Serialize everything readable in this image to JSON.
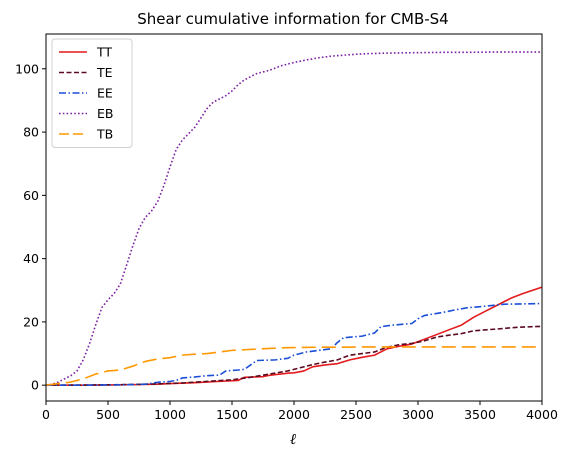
{
  "chart_data": {
    "type": "line",
    "title": "Shear cumulative information for CMB-S4",
    "xlabel": "ℓ",
    "ylabel": "",
    "xlim": [
      0,
      4000
    ],
    "ylim": [
      -5,
      111
    ],
    "xticks": [
      "0",
      "500",
      "1000",
      "1500",
      "2000",
      "2500",
      "3000",
      "3500",
      "4000"
    ],
    "yticks": [
      "0",
      "20",
      "40",
      "60",
      "80",
      "100"
    ],
    "grid": false,
    "legend_position": "top-left",
    "series": [
      {
        "name": "TT",
        "color": "#e41a1c",
        "dash": "solid",
        "x": [
          0,
          300,
          600,
          900,
          1000,
          1200,
          1400,
          1550,
          1600,
          1750,
          1800,
          1950,
          2000,
          2080,
          2150,
          2250,
          2350,
          2450,
          2550,
          2650,
          2750,
          2850,
          2950,
          3050,
          3150,
          3250,
          3350,
          3450,
          3550,
          3650,
          3750,
          3850,
          4000
        ],
        "y": [
          0,
          0,
          0.1,
          0.3,
          0.5,
          0.8,
          1.2,
          1.5,
          2.5,
          2.7,
          3.1,
          3.8,
          3.9,
          4.5,
          5.8,
          6.4,
          6.8,
          8.0,
          8.8,
          9.5,
          11.5,
          12.3,
          13.0,
          14.5,
          16.0,
          17.5,
          19.0,
          21.5,
          23.5,
          25.5,
          27.5,
          29.0,
          31.0
        ]
      },
      {
        "name": "TE",
        "color": "#5b0a20",
        "dash": "dashed",
        "x": [
          0,
          300,
          600,
          900,
          1100,
          1300,
          1500,
          1650,
          1800,
          1950,
          2050,
          2150,
          2250,
          2350,
          2450,
          2550,
          2650,
          2750,
          2850,
          2950,
          3050,
          3150,
          3250,
          3350,
          3450,
          3550,
          3650,
          3800,
          4000
        ],
        "y": [
          0,
          0.05,
          0.15,
          0.4,
          0.7,
          1.2,
          1.7,
          2.5,
          3.5,
          4.5,
          5.5,
          6.5,
          7.3,
          8.0,
          9.5,
          10.0,
          10.5,
          12.0,
          12.8,
          13.2,
          14.0,
          15.2,
          15.8,
          16.3,
          17.2,
          17.5,
          17.8,
          18.3,
          18.6
        ]
      },
      {
        "name": "EE",
        "color": "#1a4fd6",
        "dash": "dashdot",
        "x": [
          0,
          300,
          600,
          800,
          900,
          1000,
          1050,
          1100,
          1200,
          1300,
          1400,
          1450,
          1550,
          1600,
          1700,
          1850,
          1950,
          2000,
          2100,
          2200,
          2300,
          2350,
          2400,
          2550,
          2650,
          2700,
          2800,
          2950,
          3000,
          3050,
          3200,
          3300,
          3400,
          3500,
          3600,
          3700,
          4000
        ],
        "y": [
          0,
          0,
          0.1,
          0.3,
          0.9,
          1.2,
          1.5,
          2.3,
          2.6,
          3.0,
          3.2,
          4.5,
          4.8,
          5.0,
          7.8,
          8.0,
          8.5,
          9.5,
          10.5,
          11.0,
          11.5,
          13.5,
          15.0,
          15.5,
          16.5,
          18.5,
          19.0,
          19.5,
          21.0,
          22.0,
          23.0,
          23.8,
          24.5,
          24.8,
          25.2,
          25.6,
          25.8
        ]
      },
      {
        "name": "EB",
        "color": "#7b1fa2",
        "dash": "dotted",
        "x": [
          0,
          50,
          100,
          150,
          200,
          250,
          300,
          350,
          400,
          450,
          500,
          550,
          600,
          650,
          700,
          750,
          800,
          850,
          900,
          950,
          1000,
          1050,
          1100,
          1150,
          1200,
          1250,
          1300,
          1350,
          1400,
          1450,
          1500,
          1550,
          1600,
          1650,
          1700,
          1800,
          1900,
          2000,
          2100,
          2200,
          2300,
          2400,
          2500,
          2600,
          2700,
          2800,
          3000,
          3200,
          3400,
          3600,
          3800,
          4000
        ],
        "y": [
          0,
          0.3,
          1.0,
          2.0,
          3.0,
          4.5,
          8.0,
          13.0,
          19.0,
          24.5,
          27.0,
          29.0,
          32.0,
          38.0,
          44.0,
          49.5,
          53.0,
          55.0,
          58.0,
          63.0,
          69.0,
          74.5,
          77.5,
          79.5,
          81.5,
          84.5,
          87.5,
          89.5,
          90.5,
          91.5,
          93.0,
          95.0,
          96.5,
          97.5,
          98.5,
          99.5,
          101.0,
          102.0,
          102.8,
          103.5,
          104.0,
          104.3,
          104.6,
          104.8,
          104.9,
          105.0,
          105.1,
          105.2,
          105.2,
          105.3,
          105.3,
          105.3
        ]
      },
      {
        "name": "TB",
        "color": "#ff9800",
        "dash": "longdash",
        "x": [
          0,
          100,
          200,
          300,
          400,
          500,
          600,
          700,
          800,
          900,
          1000,
          1100,
          1200,
          1300,
          1400,
          1500,
          1600,
          1700,
          1800,
          1900,
          2000,
          2200,
          2400,
          2600,
          2800,
          3000,
          3200,
          3500,
          4000
        ],
        "y": [
          0,
          0.5,
          1.0,
          2.0,
          3.5,
          4.5,
          4.8,
          6.0,
          7.5,
          8.3,
          8.7,
          9.5,
          9.8,
          10.0,
          10.5,
          11.0,
          11.2,
          11.4,
          11.6,
          11.8,
          11.9,
          12.0,
          12.0,
          12.1,
          12.1,
          12.1,
          12.1,
          12.1,
          12.1
        ]
      }
    ]
  }
}
